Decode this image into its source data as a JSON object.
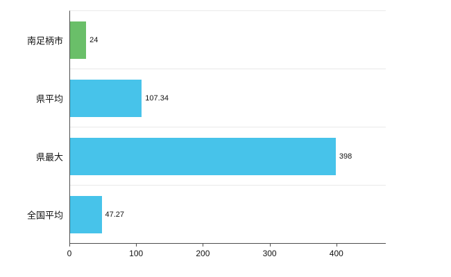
{
  "chart_data": {
    "type": "bar",
    "orientation": "horizontal",
    "title": "",
    "xlabel": "",
    "ylabel": "",
    "categories": [
      "南足柄市",
      "県平均",
      "県最大",
      "全国平均"
    ],
    "values": [
      24,
      107.34,
      398,
      47.27
    ],
    "value_labels": [
      "24",
      "107.34",
      "398",
      "47.27"
    ],
    "bar_colors": [
      "#6abf69",
      "#47c3ea",
      "#47c3ea",
      "#47c3ea"
    ],
    "x_ticks": [
      0,
      100,
      200,
      300,
      400
    ],
    "x_tick_labels": [
      "0",
      "100",
      "200",
      "300",
      "400"
    ],
    "xlim": [
      0,
      473
    ],
    "grid": "horizontal-category-separators",
    "legend": "none",
    "background": "#ffffff",
    "axis_color": "#4d4d4d",
    "gridline_color": "#e9e9e9"
  }
}
